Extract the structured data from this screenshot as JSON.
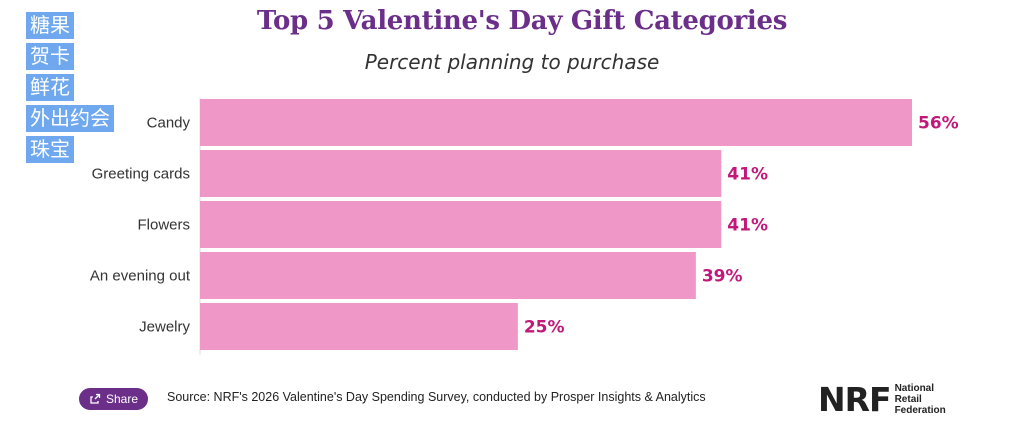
{
  "title": "Top 5 Valentine's Day Gift Categories",
  "subtitle": "Percent planning to purchase",
  "overlay_labels": [
    "糖果",
    "贺卡",
    "鲜花",
    "外出约会",
    "珠宝"
  ],
  "chart_data": {
    "type": "bar",
    "orientation": "horizontal",
    "categories": [
      "Candy",
      "Greeting cards",
      "Flowers",
      "An evening out",
      "Jewelry"
    ],
    "values": [
      56,
      41,
      41,
      39,
      25
    ],
    "value_labels": [
      "56%",
      "41%",
      "41%",
      "39%",
      "25%"
    ],
    "bar_color": "#ef97c6",
    "label_color": "#c2187a",
    "xlim": [
      0,
      56
    ],
    "grid": false
  },
  "footer": {
    "share_label": "Share",
    "source": "Source: NRF's 2026 Valentine's Day Spending Survey, conducted by Prosper Insights & Analytics"
  },
  "logo": {
    "mark": "NRF",
    "line1": "National",
    "line2": "Retail",
    "line3": "Federation"
  }
}
